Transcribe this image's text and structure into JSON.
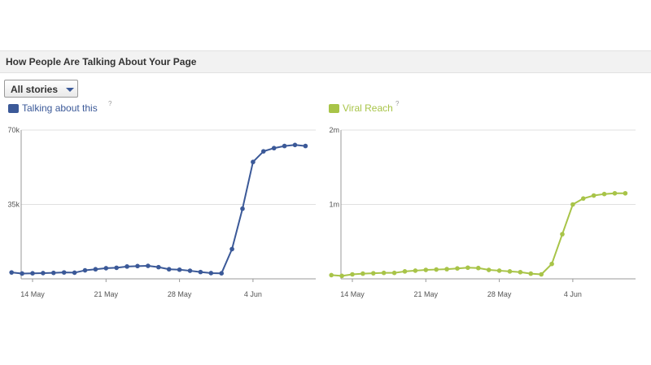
{
  "header": {
    "title": "How People Are Talking About Your Page"
  },
  "filter": {
    "selected": "All stories"
  },
  "colors": {
    "talking": "#3b5998",
    "viral": "#a8c448",
    "grid": "#e0e0e0",
    "axis": "#999999"
  },
  "chart_data": [
    {
      "type": "line",
      "title": "",
      "xlabel": "",
      "ylabel": "",
      "legend": "Talking about this",
      "help_icon": "?",
      "ylim": [
        0,
        70000
      ],
      "yticks": [
        "70k",
        "35k"
      ],
      "ytick_values": [
        70000,
        35000
      ],
      "xticks": [
        "14 May",
        "21 May",
        "28 May",
        "4 Jun"
      ],
      "xtick_days": [
        14,
        21,
        28,
        35
      ],
      "x_days": [
        12,
        13,
        14,
        15,
        16,
        17,
        18,
        19,
        20,
        21,
        22,
        23,
        24,
        25,
        26,
        27,
        28,
        29,
        30,
        31,
        32,
        33,
        34,
        35,
        36,
        37,
        38,
        39,
        40
      ],
      "values": [
        3000,
        2500,
        2600,
        2700,
        2800,
        3000,
        2900,
        4000,
        4500,
        5000,
        5200,
        5800,
        6000,
        6100,
        5500,
        4500,
        4300,
        3800,
        3200,
        2700,
        2600,
        14000,
        33000,
        55000,
        60000,
        61500,
        62500,
        63000,
        62500
      ]
    },
    {
      "type": "line",
      "title": "",
      "xlabel": "",
      "ylabel": "",
      "legend": "Viral Reach",
      "help_icon": "?",
      "ylim": [
        0,
        2000000
      ],
      "yticks": [
        "2m",
        "1m"
      ],
      "ytick_values": [
        2000000,
        1000000
      ],
      "xticks": [
        "14 May",
        "21 May",
        "28 May",
        "4 Jun"
      ],
      "xtick_days": [
        14,
        21,
        28,
        35
      ],
      "x_days": [
        12,
        13,
        14,
        15,
        16,
        17,
        18,
        19,
        20,
        21,
        22,
        23,
        24,
        25,
        26,
        27,
        28,
        29,
        30,
        31,
        32,
        33,
        34,
        35,
        36,
        37,
        38,
        39,
        40
      ],
      "values": [
        50000,
        40000,
        60000,
        70000,
        75000,
        80000,
        80000,
        100000,
        110000,
        120000,
        125000,
        130000,
        140000,
        150000,
        145000,
        120000,
        110000,
        100000,
        90000,
        70000,
        60000,
        200000,
        600000,
        1000000,
        1080000,
        1120000,
        1140000,
        1150000,
        1150000
      ]
    }
  ]
}
